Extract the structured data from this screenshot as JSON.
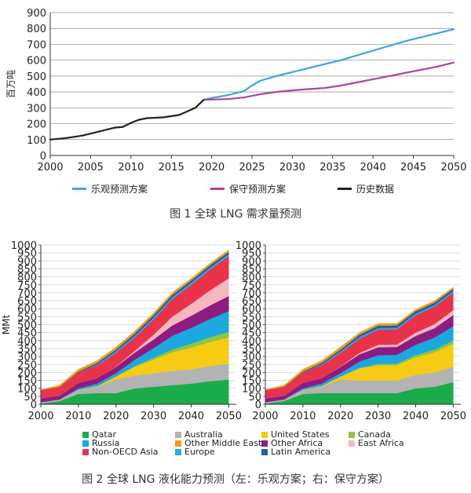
{
  "chart_data": [
    {
      "type": "line",
      "title": "",
      "caption": "图 1   全球 LNG 需求量预测",
      "ylabel": "百万吨",
      "xlim": [
        2000,
        2050
      ],
      "ylim": [
        0,
        900
      ],
      "x_ticks": [
        "2000",
        "2005",
        "2010",
        "2015",
        "2020",
        "2025",
        "2030",
        "2035",
        "2040",
        "2045",
        "2050"
      ],
      "y_ticks": [
        "0",
        "100",
        "200",
        "300",
        "400",
        "500",
        "600",
        "700",
        "800",
        "900"
      ],
      "series": [
        {
          "name": "乐观预测方案",
          "color": "#3aa7dc",
          "x": [
            2019,
            2020,
            2022,
            2024,
            2025,
            2026,
            2028,
            2030,
            2032,
            2034,
            2036,
            2038,
            2040,
            2042,
            2044,
            2046,
            2048,
            2050
          ],
          "values": [
            350,
            362,
            380,
            405,
            440,
            470,
            500,
            525,
            550,
            575,
            600,
            630,
            660,
            690,
            720,
            745,
            770,
            795
          ]
        },
        {
          "name": "保守预测方案",
          "color": "#b1449a",
          "x": [
            2019,
            2020,
            2022,
            2024,
            2026,
            2028,
            2030,
            2032,
            2034,
            2036,
            2038,
            2040,
            2042,
            2044,
            2046,
            2048,
            2050
          ],
          "values": [
            350,
            352,
            355,
            365,
            385,
            400,
            410,
            418,
            425,
            440,
            460,
            480,
            500,
            520,
            540,
            560,
            585
          ]
        },
        {
          "name": "历史数据",
          "color": "#222222",
          "x": [
            2000,
            2002,
            2004,
            2006,
            2008,
            2009,
            2010,
            2011,
            2012,
            2014,
            2016,
            2018,
            2019
          ],
          "values": [
            100,
            110,
            125,
            150,
            175,
            180,
            205,
            225,
            235,
            240,
            255,
            300,
            350
          ]
        }
      ]
    },
    {
      "type": "area",
      "caption": "图 2   全球 LNG 液化能力预测（左：乐观方案；右：保守方案）",
      "ylabel": "MMt",
      "xlim": [
        2000,
        2052
      ],
      "ylim": [
        0,
        1000
      ],
      "x_ticks": [
        "2000",
        "2010",
        "2020",
        "2030",
        "2040",
        "2050"
      ],
      "y_ticks": [
        "0",
        "50",
        "100",
        "150",
        "200",
        "250",
        "300",
        "350",
        "400",
        "450",
        "500",
        "550",
        "600",
        "650",
        "700",
        "750",
        "800",
        "850",
        "900",
        "950",
        "1000"
      ],
      "x": [
        2000,
        2005,
        2010,
        2015,
        2020,
        2025,
        2030,
        2035,
        2040,
        2045,
        2050
      ],
      "legend": [
        {
          "name": "Qatar",
          "color": "#1aab4b"
        },
        {
          "name": "Russia",
          "color": "#1ba7e0"
        },
        {
          "name": "Non-OECD Asia",
          "color": "#e8334a"
        },
        {
          "name": "Australia",
          "color": "#b3b3b3"
        },
        {
          "name": "Other Middle East",
          "color": "#f39c12"
        },
        {
          "name": "Europe",
          "color": "#29abe2"
        },
        {
          "name": "United States",
          "color": "#f7cb15"
        },
        {
          "name": "Other Africa",
          "color": "#8e1b7f"
        },
        {
          "name": "Latin America",
          "color": "#1f5fa8"
        },
        {
          "name": "Canada",
          "color": "#8cc63f"
        },
        {
          "name": "East Africa",
          "color": "#f6b8be"
        }
      ],
      "panels": [
        {
          "name": "乐观方案",
          "series": [
            {
              "name": "Qatar",
              "color": "#1aab4b",
              "values": [
                5,
                20,
                65,
                70,
                70,
                100,
                110,
                120,
                130,
                145,
                155
              ]
            },
            {
              "name": "Australia",
              "color": "#b3b3b3",
              "values": [
                8,
                10,
                25,
                40,
                85,
                80,
                85,
                90,
                90,
                95,
                100
              ]
            },
            {
              "name": "United States",
              "color": "#f7cb15",
              "values": [
                0,
                0,
                2,
                5,
                20,
                55,
                85,
                115,
                135,
                150,
                165
              ]
            },
            {
              "name": "Canada",
              "color": "#8cc63f",
              "values": [
                0,
                0,
                0,
                0,
                0,
                5,
                12,
                20,
                25,
                30,
                35
              ]
            },
            {
              "name": "Russia",
              "color": "#1ba7e0",
              "values": [
                0,
                0,
                8,
                15,
                20,
                40,
                60,
                85,
                100,
                115,
                130
              ]
            },
            {
              "name": "Other Africa",
              "color": "#8e1b7f",
              "values": [
                25,
                25,
                35,
                35,
                40,
                45,
                55,
                65,
                75,
                85,
                95
              ]
            },
            {
              "name": "East Africa",
              "color": "#f6b8be",
              "values": [
                0,
                0,
                0,
                0,
                2,
                10,
                30,
                55,
                75,
                95,
                110
              ]
            },
            {
              "name": "Non-OECD Asia",
              "color": "#e8334a",
              "values": [
                50,
                55,
                65,
                80,
                85,
                85,
                95,
                110,
                120,
                130,
                140
              ]
            },
            {
              "name": "Europe",
              "color": "#29abe2",
              "values": [
                0,
                0,
                0,
                5,
                10,
                10,
                12,
                12,
                12,
                12,
                12
              ]
            },
            {
              "name": "Latin America",
              "color": "#1f5fa8",
              "values": [
                0,
                0,
                5,
                10,
                12,
                15,
                15,
                15,
                15,
                15,
                15
              ]
            },
            {
              "name": "Other Middle East",
              "color": "#f39c12",
              "values": [
                5,
                10,
                15,
                15,
                16,
                15,
                15,
                15,
                13,
                13,
                13
              ]
            }
          ]
        },
        {
          "name": "保守方案",
          "series": [
            {
              "name": "Qatar",
              "color": "#1aab4b",
              "values": [
                5,
                20,
                65,
                70,
                70,
                70,
                70,
                70,
                100,
                110,
                140
              ]
            },
            {
              "name": "Australia",
              "color": "#b3b3b3",
              "values": [
                8,
                10,
                25,
                40,
                85,
                80,
                80,
                80,
                85,
                90,
                95
              ]
            },
            {
              "name": "United States",
              "color": "#f7cb15",
              "values": [
                0,
                0,
                2,
                5,
                20,
                75,
                95,
                95,
                110,
                125,
                145
              ]
            },
            {
              "name": "Canada",
              "color": "#8cc63f",
              "values": [
                0,
                0,
                0,
                0,
                0,
                3,
                8,
                10,
                14,
                18,
                20
              ]
            },
            {
              "name": "Russia",
              "color": "#1ba7e0",
              "values": [
                0,
                0,
                8,
                15,
                20,
                40,
                55,
                55,
                65,
                75,
                90
              ]
            },
            {
              "name": "Other Africa",
              "color": "#8e1b7f",
              "values": [
                25,
                25,
                35,
                35,
                40,
                45,
                50,
                50,
                55,
                60,
                70
              ]
            },
            {
              "name": "East Africa",
              "color": "#f6b8be",
              "values": [
                0,
                0,
                0,
                0,
                2,
                8,
                15,
                15,
                20,
                25,
                30
              ]
            },
            {
              "name": "Non-OECD Asia",
              "color": "#e8334a",
              "values": [
                50,
                55,
                65,
                80,
                85,
                90,
                95,
                95,
                110,
                110,
                110
              ]
            },
            {
              "name": "Europe",
              "color": "#29abe2",
              "values": [
                0,
                0,
                0,
                5,
                10,
                10,
                10,
                10,
                10,
                10,
                10
              ]
            },
            {
              "name": "Latin America",
              "color": "#1f5fa8",
              "values": [
                0,
                0,
                5,
                10,
                12,
                15,
                15,
                15,
                15,
                15,
                15
              ]
            },
            {
              "name": "Other Middle East",
              "color": "#f39c12",
              "values": [
                5,
                10,
                15,
                15,
                16,
                14,
                14,
                13,
                12,
                12,
                10
              ]
            }
          ]
        }
      ]
    }
  ]
}
